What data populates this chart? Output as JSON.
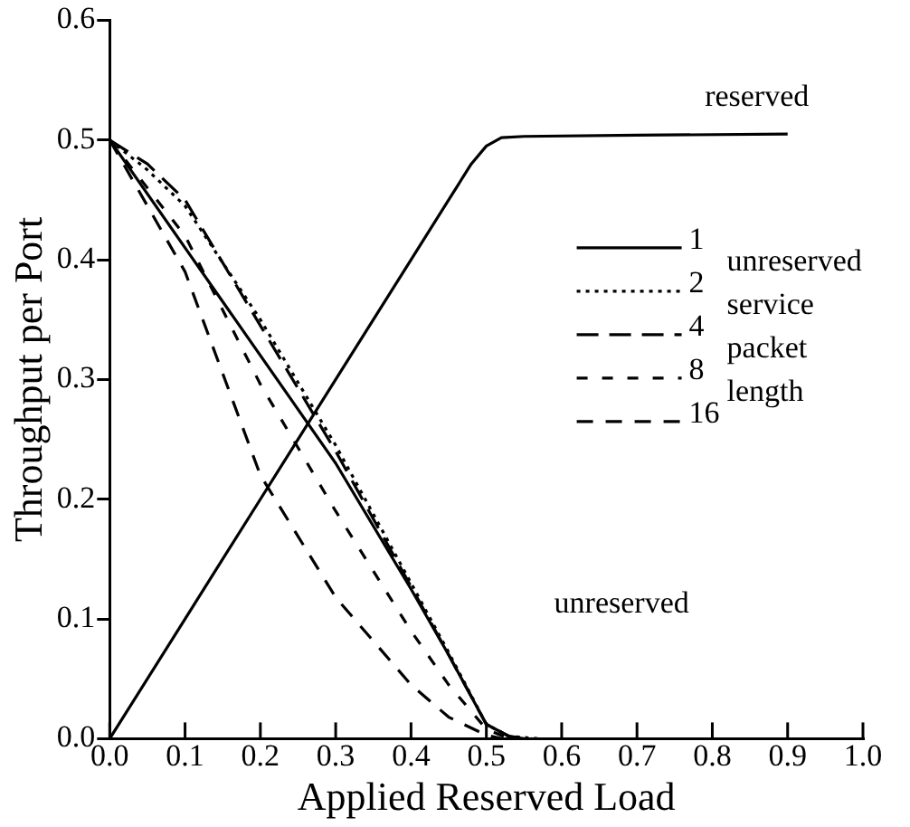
{
  "chart_data": {
    "type": "line",
    "xlabel": "Applied Reserved Load",
    "ylabel": "Throughput per Port",
    "legend_title": "unreserved service packet length",
    "legend": "right",
    "grid": false,
    "marker": "none",
    "xlim": [
      0,
      1
    ],
    "xticks": [
      {
        "value": 0,
        "label": "0.0"
      },
      0.1,
      0.2,
      0.3,
      0.4,
      0.5,
      0.6,
      0.7,
      0.8,
      0.9,
      {
        "value": 1,
        "label": "1.0"
      }
    ],
    "ylim": [
      0,
      0.6
    ],
    "yticks": [
      {
        "value": 0,
        "label": "0.0"
      },
      0.1,
      0.2,
      0.3,
      0.4,
      0.5,
      0.6
    ],
    "annotations": [
      "reserved",
      "unreserved"
    ],
    "series": [
      {
        "color": "#000000",
        "line_style": "solid",
        "x": [
          0,
          0.1,
          0.2,
          0.3,
          0.4,
          0.45,
          0.48,
          0.5,
          0.52,
          0.55,
          0.7,
          0.9
        ],
        "values": [
          0,
          0.1,
          0.2,
          0.3,
          0.4,
          0.45,
          0.48,
          0.495,
          0.502,
          0.503,
          0.504,
          0.505
        ]
      },
      {
        "name": "1",
        "color": "#000000",
        "line_style": "solid",
        "x": [
          0,
          0.1,
          0.2,
          0.3,
          0.4,
          0.45,
          0.5,
          0.53,
          0.55
        ],
        "values": [
          0.5,
          0.41,
          0.32,
          0.23,
          0.125,
          0.07,
          0.012,
          0.002,
          0
        ]
      },
      {
        "name": "2",
        "color": "#000000",
        "line_style": "dotted",
        "x": [
          0,
          0.05,
          0.1,
          0.2,
          0.3,
          0.4,
          0.45,
          0.5,
          0.53,
          0.57
        ],
        "values": [
          0.5,
          0.475,
          0.445,
          0.35,
          0.245,
          0.13,
          0.072,
          0.012,
          0.002,
          0
        ]
      },
      {
        "name": "4",
        "color": "#000000",
        "line_style": "dashed",
        "x": [
          0,
          0.05,
          0.1,
          0.2,
          0.3,
          0.4,
          0.45,
          0.5,
          0.53,
          0.56
        ],
        "values": [
          0.5,
          0.48,
          0.45,
          0.345,
          0.24,
          0.127,
          0.07,
          0.012,
          0.002,
          0
        ]
      },
      {
        "name": "8",
        "color": "#000000",
        "line_style": "dashed",
        "x": [
          0,
          0.1,
          0.2,
          0.3,
          0.4,
          0.45,
          0.5,
          0.53
        ],
        "values": [
          0.5,
          0.42,
          0.296,
          0.19,
          0.09,
          0.045,
          0.008,
          0
        ]
      },
      {
        "name": "16",
        "color": "#000000",
        "line_style": "dashed",
        "x": [
          0,
          0.1,
          0.2,
          0.3,
          0.4,
          0.45,
          0.5,
          0.52
        ],
        "values": [
          0.5,
          0.39,
          0.22,
          0.118,
          0.045,
          0.018,
          0.003,
          0
        ]
      }
    ]
  }
}
